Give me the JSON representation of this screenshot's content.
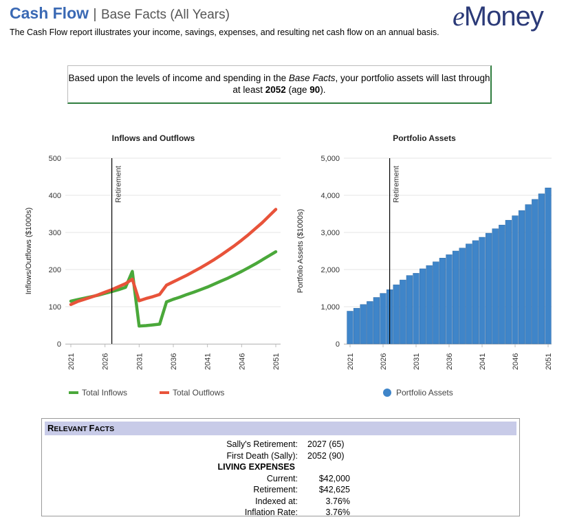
{
  "header": {
    "title": "Cash Flow",
    "separator": "|",
    "subtitle": "Base Facts (All Years)",
    "logo": "eMoney",
    "description": "The Cash Flow report illustrates your income, savings, expenses, and resulting net cash flow on an annual basis."
  },
  "notice": {
    "text_before": "Based upon the levels of income and spending in the ",
    "italic": "Base Facts",
    "text_middle": ", your portfolio assets will last through at least ",
    "year": "2052",
    "age_prefix": " (age ",
    "age": "90",
    "age_suffix": ")."
  },
  "colors": {
    "inflows": "#4aa83a",
    "outflows": "#e8533a",
    "bars": "#3f85c9",
    "title_blue": "#3a69b4",
    "facts_header": "#c8cbe8"
  },
  "chart_data": [
    {
      "type": "line",
      "title": "Inflows and Outflows",
      "ylabel": "Inflows/Outflows ($1000s)",
      "ylim": [
        0,
        500
      ],
      "yticks": [
        "0",
        "100",
        "200",
        "300",
        "400",
        "500"
      ],
      "xlim": [
        2021,
        2051
      ],
      "xticks": [
        "2021",
        "2026",
        "2031",
        "2036",
        "2041",
        "2046",
        "2051"
      ],
      "marker": {
        "label": "Retirement",
        "x": 2027
      },
      "legend_position": "bottom",
      "series": [
        {
          "name": "Total Inflows",
          "x": [
            2021,
            2022,
            2023,
            2024,
            2025,
            2026,
            2027,
            2028,
            2029,
            2030,
            2031,
            2032,
            2033,
            2034,
            2035,
            2036,
            2037,
            2038,
            2039,
            2040,
            2041,
            2042,
            2043,
            2044,
            2045,
            2046,
            2047,
            2048,
            2049,
            2050,
            2051
          ],
          "y": [
            115,
            119,
            123,
            127,
            131,
            136,
            141,
            146,
            152,
            195,
            48,
            49,
            51,
            53,
            113,
            120,
            126,
            133,
            139,
            146,
            153,
            161,
            169,
            177,
            186,
            195,
            205,
            215,
            226,
            237,
            248
          ]
        },
        {
          "name": "Total Outflows",
          "x": [
            2021,
            2022,
            2023,
            2024,
            2025,
            2026,
            2027,
            2028,
            2029,
            2030,
            2031,
            2032,
            2033,
            2034,
            2035,
            2036,
            2037,
            2038,
            2039,
            2040,
            2041,
            2042,
            2043,
            2044,
            2045,
            2046,
            2047,
            2048,
            2049,
            2050,
            2051
          ],
          "y": [
            106,
            114,
            120,
            126,
            132,
            139,
            146,
            154,
            162,
            174,
            116,
            122,
            127,
            133,
            158,
            167,
            176,
            185,
            195,
            205,
            216,
            227,
            239,
            252,
            265,
            279,
            294,
            310,
            326,
            344,
            362
          ]
        }
      ]
    },
    {
      "type": "bar",
      "title": "Portfolio Assets",
      "ylabel": "Portfolio Assets ($1000s)",
      "ylim": [
        0,
        5000
      ],
      "yticks": [
        "0",
        "1,000",
        "2,000",
        "3,000",
        "4,000",
        "5,000"
      ],
      "xlim": [
        2021,
        2051
      ],
      "xticks": [
        "2021",
        "2026",
        "2031",
        "2036",
        "2041",
        "2046",
        "2051"
      ],
      "marker": {
        "label": "Retirement",
        "x": 2027
      },
      "legend_position": "bottom",
      "series": [
        {
          "name": "Portfolio Assets",
          "x": [
            2021,
            2022,
            2023,
            2024,
            2025,
            2026,
            2027,
            2028,
            2029,
            2030,
            2031,
            2032,
            2033,
            2034,
            2035,
            2036,
            2037,
            2038,
            2039,
            2040,
            2041,
            2042,
            2043,
            2044,
            2045,
            2046,
            2047,
            2048,
            2049,
            2050,
            2051
          ],
          "values": [
            880,
            960,
            1060,
            1140,
            1250,
            1360,
            1460,
            1590,
            1720,
            1840,
            1900,
            2020,
            2110,
            2210,
            2310,
            2400,
            2500,
            2580,
            2690,
            2780,
            2870,
            2980,
            3100,
            3200,
            3330,
            3450,
            3590,
            3750,
            3890,
            4040,
            4200
          ]
        }
      ]
    }
  ],
  "facts": {
    "heading_cap": "R",
    "heading_rest": "ELEVANT ",
    "heading_cap2": "F",
    "heading_rest2": "ACTS",
    "rows": [
      {
        "label": "Sally's Retirement:",
        "value": "2027 (65)"
      },
      {
        "label": "First Death (Sally):",
        "value": "2052 (90)"
      },
      {
        "label": "LIVING EXPENSES",
        "value": ""
      },
      {
        "label": "Current:",
        "value": "$42,000"
      },
      {
        "label": "Retirement:",
        "value": "$42,625"
      },
      {
        "label": "Indexed at:",
        "value": "3.76%"
      },
      {
        "label": "Inflation Rate:",
        "value": "3.76%"
      }
    ]
  }
}
